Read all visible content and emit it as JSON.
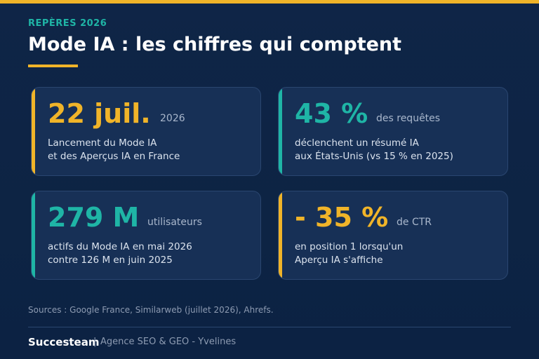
{
  "header": {
    "eyebrow": "REPÈRES 2026",
    "title": "Mode IA : les chiffres qui comptent"
  },
  "colors": {
    "accent_gold": "#f0b429",
    "accent_teal": "#1fb5a6",
    "background": "#0f2547",
    "card": "#173056"
  },
  "cards": [
    {
      "big": "22 juil.",
      "unit": "2026",
      "line1": "Lancement du Mode IA",
      "line2": "et des Aperçus IA en France",
      "accent": "gold"
    },
    {
      "big": "43 %",
      "unit": "des requêtes",
      "line1": "déclenchent un résumé IA",
      "line2": "aux États-Unis (vs 15 % en 2025)",
      "accent": "teal"
    },
    {
      "big": "279 M",
      "unit": "utilisateurs",
      "line1": "actifs du Mode IA en mai 2026",
      "line2": "contre 126 M en juin 2025",
      "accent": "teal"
    },
    {
      "big": "- 35 %",
      "unit": "de CTR",
      "line1": "en position 1 lorsqu'un",
      "line2": "Aperçu IA s'affiche",
      "accent": "gold"
    }
  ],
  "footer": {
    "sources": "Sources : Google France, Similarweb (juillet 2026), Ahrefs.",
    "brand": "Succesteam",
    "separator": "|",
    "tagline": "Agence SEO & GEO - Yvelines"
  }
}
